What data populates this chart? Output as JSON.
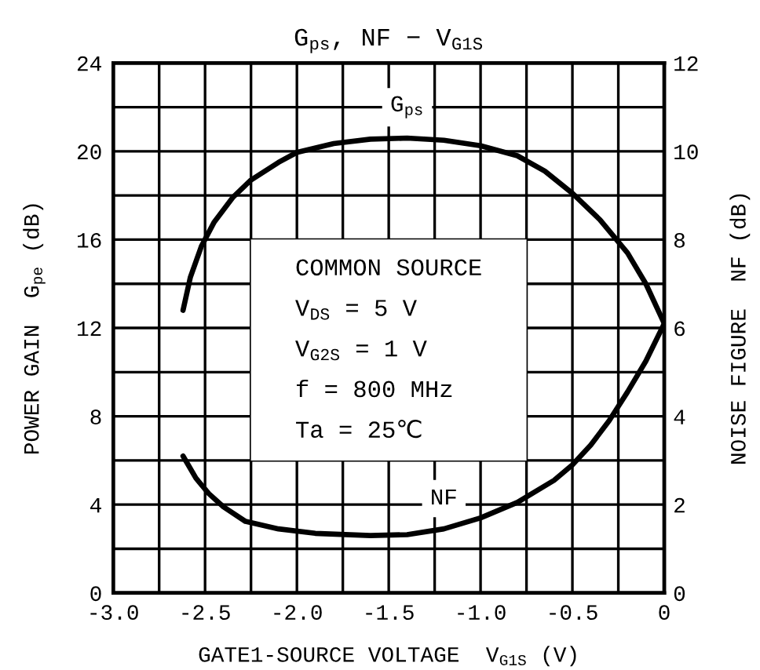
{
  "chart_data": {
    "type": "line",
    "title": "G$_{ps}$, NF − V$_{G1S}$",
    "xlabel": "GATE1-SOURCE VOLTAGE  V$_{G1S}$ (V)",
    "ylabel": "POWER GAIN  G$_{pe}$ (dB)",
    "y2label": "NOISE FIGURE  NF (dB)",
    "annotations": [
      "COMMON SOURCE",
      "V$_{DS}$ = 5 V",
      "V$_{G2S}$ = 1 V",
      "f = 800 MHz",
      "Ta = 25℃"
    ],
    "series": [
      {
        "name": "G$_{ps}$",
        "color": "#000000",
        "x": [
          -2.62,
          -2.58,
          -2.52,
          -2.45,
          -2.35,
          -2.25,
          -2.1,
          -2.0,
          -1.8,
          -1.6,
          -1.4,
          -1.2,
          -1.0,
          -0.8,
          -0.65,
          -0.5,
          -0.35,
          -0.2,
          -0.1,
          0.0
        ],
        "values": [
          12.8,
          14.3,
          15.7,
          16.8,
          17.9,
          18.7,
          19.5,
          19.95,
          20.35,
          20.55,
          20.6,
          20.5,
          20.25,
          19.8,
          19.1,
          18.1,
          16.9,
          15.4,
          14.0,
          12.2
        ]
      },
      {
        "name": "NF",
        "color": "#000000",
        "axis": "y2",
        "x": [
          -2.62,
          -2.55,
          -2.48,
          -2.4,
          -2.28,
          -2.1,
          -1.9,
          -1.6,
          -1.4,
          -1.2,
          -1.0,
          -0.8,
          -0.6,
          -0.5,
          -0.4,
          -0.3,
          -0.2,
          -0.1,
          0.0
        ],
        "values": [
          3.1,
          2.6,
          2.25,
          1.95,
          1.62,
          1.45,
          1.35,
          1.3,
          1.32,
          1.45,
          1.7,
          2.05,
          2.55,
          2.9,
          3.35,
          3.9,
          4.55,
          5.25,
          6.1
        ]
      }
    ],
    "xlim": [
      -3.0,
      0
    ],
    "xticks": [
      {
        "value": -3.0,
        "label": "-3.0"
      },
      {
        "value": -2.75,
        "label": null
      },
      -2.5,
      {
        "value": -2.25,
        "label": null
      },
      {
        "value": -2.0,
        "label": "-2.0"
      },
      {
        "value": -1.75,
        "label": null
      },
      -1.5,
      {
        "value": -1.25,
        "label": null
      },
      {
        "value": -1.0,
        "label": "-1.0"
      },
      {
        "value": -0.75,
        "label": null
      },
      -0.5,
      {
        "value": -0.25,
        "label": null
      },
      0
    ],
    "ylim": [
      0,
      24
    ],
    "yticks": [
      0,
      {
        "value": 2,
        "label": null
      },
      4,
      {
        "value": 6,
        "label": null
      },
      8,
      {
        "value": 10,
        "label": null
      },
      12,
      {
        "value": 14,
        "label": null
      },
      16,
      {
        "value": 18,
        "label": null
      },
      20,
      {
        "value": 22,
        "label": null
      },
      24
    ],
    "y2lim": [
      0,
      12
    ],
    "y2ticks": [
      0,
      2,
      4,
      6,
      8,
      10,
      12
    ],
    "grid": true,
    "line_style": "solid"
  }
}
